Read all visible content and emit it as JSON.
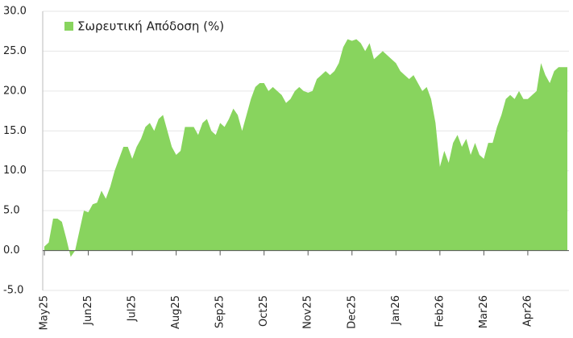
{
  "chart_data": {
    "type": "area",
    "categories": [
      "May25",
      null,
      null,
      null,
      null,
      null,
      null,
      null,
      null,
      null,
      "Jun25",
      null,
      null,
      null,
      null,
      null,
      null,
      null,
      null,
      null,
      "Jul25",
      null,
      null,
      null,
      null,
      null,
      null,
      null,
      null,
      null,
      "Aug25",
      null,
      null,
      null,
      null,
      null,
      null,
      null,
      null,
      null,
      "Sep25",
      null,
      null,
      null,
      null,
      null,
      null,
      null,
      null,
      null,
      "Oct25",
      null,
      null,
      null,
      null,
      null,
      null,
      null,
      null,
      null,
      "Nov25",
      null,
      null,
      null,
      null,
      null,
      null,
      null,
      null,
      null,
      "Dec25",
      null,
      null,
      null,
      null,
      null,
      null,
      null,
      null,
      null,
      "Jan26",
      null,
      null,
      null,
      null,
      null,
      null,
      null,
      null,
      null,
      "Feb26",
      null,
      null,
      null,
      null,
      null,
      null,
      null,
      null,
      null,
      "Mar26",
      null,
      null,
      null,
      null,
      null,
      null,
      null,
      null,
      null,
      "Apr26",
      null,
      null,
      null,
      null,
      null,
      null,
      null,
      null,
      null
    ],
    "series": [
      {
        "name": "Σωρευτική Απόδοση (%)",
        "color": "#88d45e",
        "values": [
          0.5,
          1.0,
          4.0,
          4.0,
          3.6,
          1.5,
          -0.8,
          0.0,
          2.5,
          5.0,
          4.8,
          5.8,
          6.0,
          7.5,
          6.5,
          8.0,
          10.0,
          11.5,
          13.0,
          13.0,
          11.5,
          13.0,
          14.0,
          15.5,
          16.0,
          15.0,
          16.5,
          17.0,
          15.0,
          13.0,
          12.0,
          12.5,
          15.5,
          15.5,
          15.5,
          14.5,
          16.0,
          16.5,
          15.0,
          14.5,
          16.0,
          15.5,
          16.5,
          17.8,
          17.0,
          15.0,
          17.0,
          19.0,
          20.5,
          21.0,
          21.0,
          20.0,
          20.5,
          20.0,
          19.5,
          18.5,
          19.0,
          20.0,
          20.5,
          20.0,
          19.8,
          20.0,
          21.5,
          22.0,
          22.5,
          22.0,
          22.5,
          23.5,
          25.5,
          26.5,
          26.3,
          26.5,
          26.0,
          25.0,
          26.0,
          24.0,
          24.5,
          25.0,
          24.5,
          24.0,
          23.5,
          22.5,
          22.0,
          21.5,
          22.0,
          21.0,
          20.0,
          20.5,
          19.0,
          16.0,
          10.5,
          12.5,
          11.0,
          13.5,
          14.5,
          13.0,
          14.0,
          12.0,
          13.5,
          12.0,
          11.5,
          13.5,
          13.5,
          15.5,
          17.0,
          19.0,
          19.5,
          19.0,
          20.0,
          19.0,
          19.0,
          19.5,
          20.0,
          23.5,
          22.0,
          21.0,
          22.5,
          23.0,
          23.0,
          23.0
        ]
      }
    ],
    "ylim": [
      -5,
      30
    ],
    "yticks": [
      {
        "value": -5,
        "label": "-5.0"
      },
      {
        "value": 0,
        "label": "0.0"
      },
      {
        "value": 5,
        "label": "5.0"
      },
      {
        "value": 10,
        "label": "10.0"
      },
      {
        "value": 15,
        "label": "15.0"
      },
      {
        "value": 20,
        "label": "20.0"
      },
      {
        "value": 25,
        "label": "25.0"
      },
      {
        "value": 30,
        "label": "30.0"
      }
    ],
    "grid": true,
    "legend": "upper left"
  }
}
